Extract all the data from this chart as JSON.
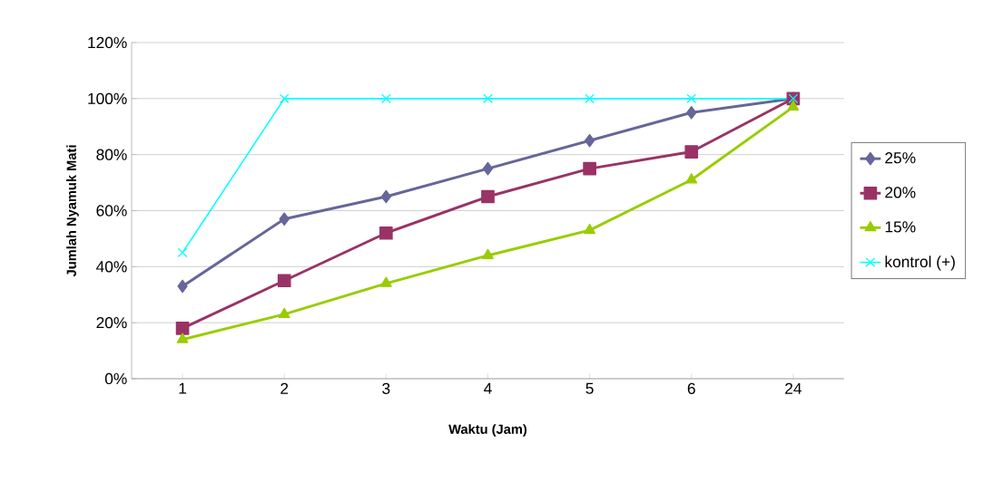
{
  "chart_data": {
    "type": "line",
    "xlabel": "Waktu (Jam)",
    "ylabel": "Jumlah Nyamuk Mati",
    "categories": [
      "1",
      "2",
      "3",
      "4",
      "5",
      "6",
      "24"
    ],
    "series": [
      {
        "name": "25%",
        "color": "#666699",
        "marker": "diamond",
        "values": [
          33,
          57,
          65,
          75,
          85,
          95,
          100
        ]
      },
      {
        "name": "20%",
        "color": "#993366",
        "marker": "square",
        "values": [
          18,
          35,
          52,
          65,
          75,
          81,
          100
        ]
      },
      {
        "name": "15%",
        "color": "#99cc00",
        "marker": "triangle",
        "values": [
          14,
          23,
          34,
          44,
          53,
          71,
          97
        ]
      },
      {
        "name": "kontrol (+)",
        "color": "#00ffff",
        "marker": "cross",
        "values": [
          45,
          100,
          100,
          100,
          100,
          100,
          100
        ]
      }
    ],
    "ylim": [
      0,
      120
    ],
    "yticks": [
      {
        "value": 0,
        "label": "0%"
      },
      {
        "value": 20,
        "label": "20%"
      },
      {
        "value": 40,
        "label": "40%"
      },
      {
        "value": 60,
        "label": "60%"
      },
      {
        "value": 80,
        "label": "80%"
      },
      {
        "value": 100,
        "label": "100%"
      },
      {
        "value": 120,
        "label": "120%"
      }
    ],
    "grid": "y",
    "legend": "right"
  }
}
